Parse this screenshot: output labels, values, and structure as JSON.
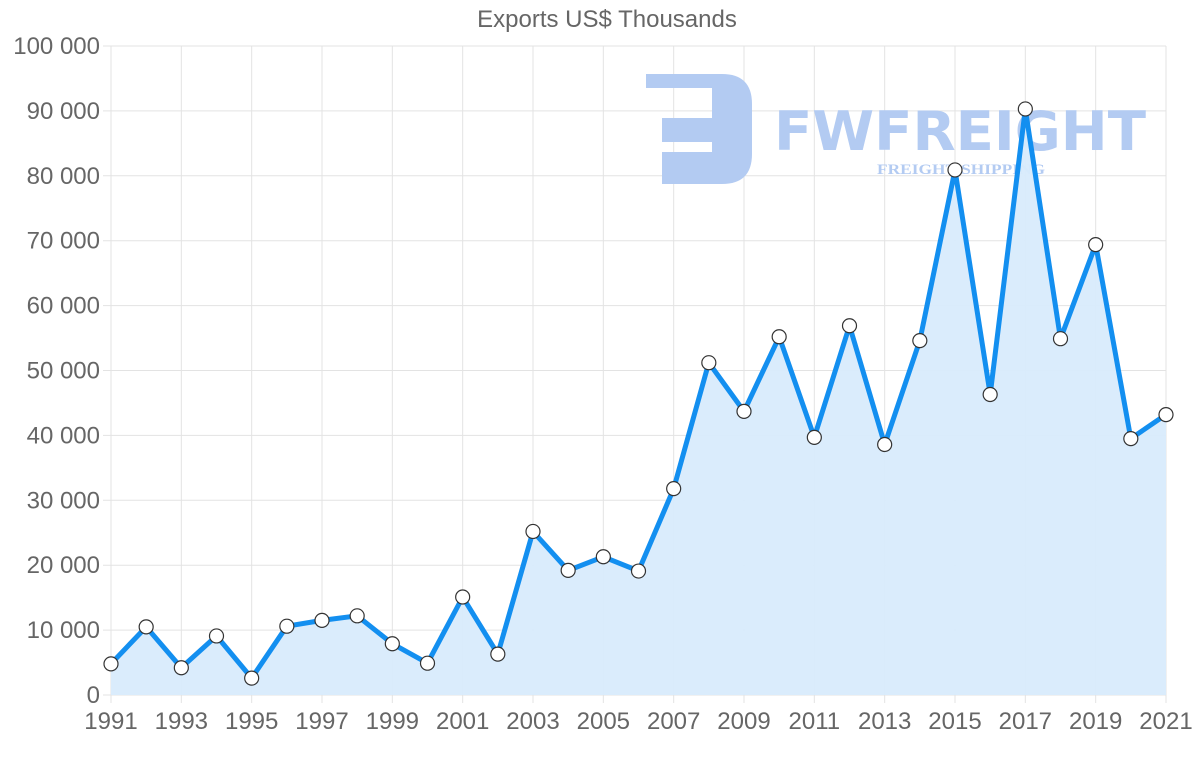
{
  "chart_data": {
    "type": "area",
    "title": "Exports US$ Thousands",
    "xlabel": "",
    "ylabel": "",
    "x": [
      1991,
      1992,
      1993,
      1994,
      1995,
      1996,
      1997,
      1998,
      1999,
      2000,
      2001,
      2002,
      2003,
      2004,
      2005,
      2006,
      2007,
      2008,
      2009,
      2010,
      2011,
      2012,
      2013,
      2014,
      2015,
      2016,
      2017,
      2018,
      2019,
      2020,
      2021
    ],
    "series": [
      {
        "name": "Exports US$ Thousands",
        "values": [
          4800,
          10500,
          4200,
          9100,
          2600,
          10600,
          11500,
          12200,
          7900,
          4900,
          15100,
          6300,
          25200,
          19200,
          21300,
          19100,
          31800,
          51200,
          43700,
          55200,
          39700,
          56900,
          38600,
          54600,
          80900,
          46300,
          90300,
          54900,
          69400,
          39500,
          43200
        ]
      }
    ],
    "ylim": [
      0,
      100000
    ],
    "xlim": [
      1991,
      2021
    ],
    "yticks": [
      "0",
      "10 000",
      "20 000",
      "30 000",
      "40 000",
      "50 000",
      "60 000",
      "70 000",
      "80 000",
      "90 000",
      "100 000"
    ],
    "xticks": [
      "1991",
      "1993",
      "1995",
      "1997",
      "1999",
      "2001",
      "2003",
      "2005",
      "2007",
      "2009",
      "2011",
      "2013",
      "2015",
      "2017",
      "2019",
      "2021"
    ],
    "grid": true,
    "legend": null,
    "colors": {
      "line": "#138ff0",
      "fill": "#d8ebfc",
      "marker_fill": "#ffffff",
      "marker_stroke": "#333333",
      "grid": "#e3e3e3"
    }
  },
  "watermark": {
    "brand": "FWFREIGHT",
    "tagline": "FREIGHT SHIPPING",
    "color": "#b3cbf2"
  }
}
